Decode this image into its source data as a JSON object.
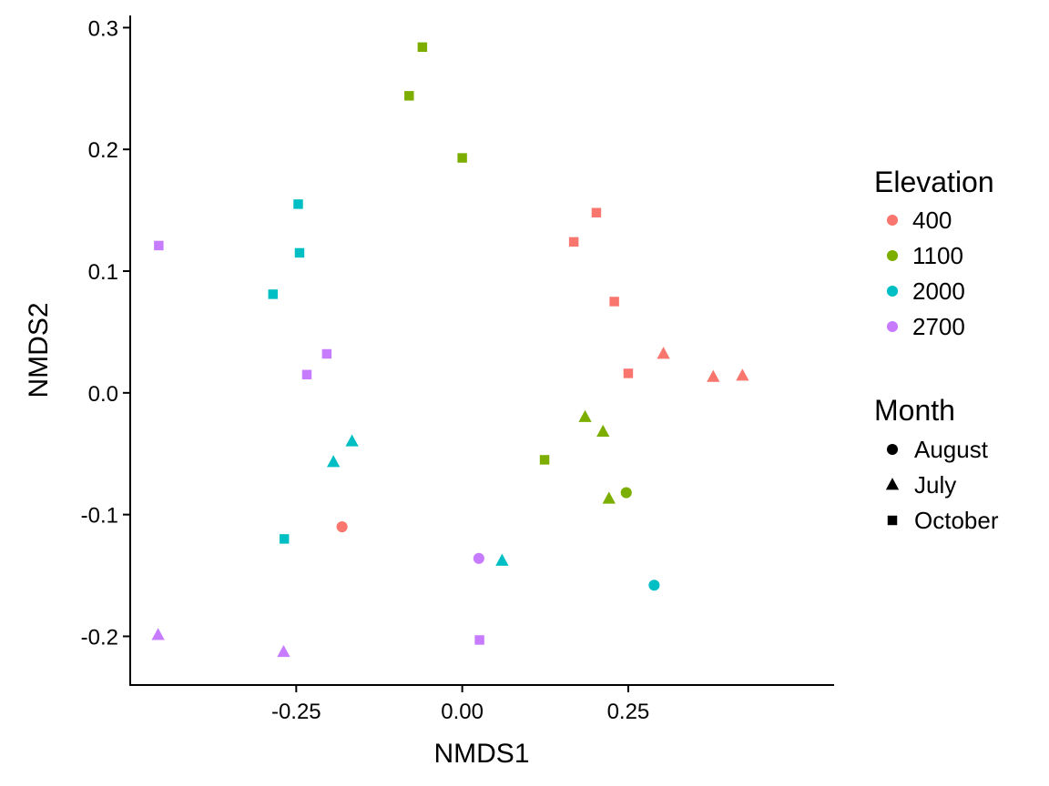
{
  "chart_data": {
    "type": "scatter",
    "xlabel": "NMDS1",
    "ylabel": "NMDS2",
    "xlim": [
      -0.5,
      0.56
    ],
    "ylim": [
      -0.24,
      0.31
    ],
    "x_ticks": [
      -0.25,
      0.0,
      0.25
    ],
    "x_tick_labels": [
      "-0.25",
      "0.00",
      "0.25"
    ],
    "y_ticks": [
      -0.2,
      -0.1,
      0.0,
      0.1,
      0.2,
      0.3
    ],
    "y_tick_labels": [
      "-0.2",
      "-0.1",
      "0.0",
      "0.1",
      "0.2",
      "0.3"
    ],
    "grid": false,
    "legend_placement": "right",
    "legends": {
      "color": {
        "title": "Elevation",
        "entries": [
          {
            "label": "400",
            "color": "#F8766D"
          },
          {
            "label": "1100",
            "color": "#7CAE00"
          },
          {
            "label": "2000",
            "color": "#00BFC4"
          },
          {
            "label": "2700",
            "color": "#C77CFF"
          }
        ]
      },
      "shape": {
        "title": "Month",
        "entries": [
          {
            "label": "August",
            "shape": "circle"
          },
          {
            "label": "July",
            "shape": "triangle"
          },
          {
            "label": "October",
            "shape": "square"
          }
        ]
      }
    },
    "points": [
      {
        "x": -0.06,
        "y": 0.284,
        "elevation": "1100",
        "month": "October"
      },
      {
        "x": -0.08,
        "y": 0.244,
        "elevation": "1100",
        "month": "October"
      },
      {
        "x": 0.0,
        "y": 0.193,
        "elevation": "1100",
        "month": "October"
      },
      {
        "x": 0.124,
        "y": -0.055,
        "elevation": "1100",
        "month": "October"
      },
      {
        "x": 0.185,
        "y": -0.02,
        "elevation": "1100",
        "month": "July"
      },
      {
        "x": 0.212,
        "y": -0.032,
        "elevation": "1100",
        "month": "July"
      },
      {
        "x": 0.221,
        "y": -0.087,
        "elevation": "1100",
        "month": "July"
      },
      {
        "x": 0.247,
        "y": -0.082,
        "elevation": "1100",
        "month": "August"
      },
      {
        "x": 0.202,
        "y": 0.148,
        "elevation": "400",
        "month": "October"
      },
      {
        "x": 0.168,
        "y": 0.124,
        "elevation": "400",
        "month": "October"
      },
      {
        "x": 0.229,
        "y": 0.075,
        "elevation": "400",
        "month": "October"
      },
      {
        "x": 0.25,
        "y": 0.016,
        "elevation": "400",
        "month": "October"
      },
      {
        "x": 0.303,
        "y": 0.032,
        "elevation": "400",
        "month": "July"
      },
      {
        "x": 0.378,
        "y": 0.013,
        "elevation": "400",
        "month": "July"
      },
      {
        "x": 0.422,
        "y": 0.014,
        "elevation": "400",
        "month": "July"
      },
      {
        "x": -0.181,
        "y": -0.11,
        "elevation": "400",
        "month": "August"
      },
      {
        "x": -0.247,
        "y": 0.155,
        "elevation": "2000",
        "month": "October"
      },
      {
        "x": -0.245,
        "y": 0.115,
        "elevation": "2000",
        "month": "October"
      },
      {
        "x": -0.285,
        "y": 0.081,
        "elevation": "2000",
        "month": "October"
      },
      {
        "x": -0.268,
        "y": -0.12,
        "elevation": "2000",
        "month": "October"
      },
      {
        "x": -0.166,
        "y": -0.04,
        "elevation": "2000",
        "month": "July"
      },
      {
        "x": -0.194,
        "y": -0.057,
        "elevation": "2000",
        "month": "July"
      },
      {
        "x": 0.06,
        "y": -0.138,
        "elevation": "2000",
        "month": "July"
      },
      {
        "x": 0.289,
        "y": -0.158,
        "elevation": "2000",
        "month": "August"
      },
      {
        "x": -0.457,
        "y": 0.121,
        "elevation": "2700",
        "month": "October"
      },
      {
        "x": -0.204,
        "y": 0.032,
        "elevation": "2700",
        "month": "October"
      },
      {
        "x": -0.234,
        "y": 0.015,
        "elevation": "2700",
        "month": "October"
      },
      {
        "x": 0.026,
        "y": -0.203,
        "elevation": "2700",
        "month": "October"
      },
      {
        "x": -0.458,
        "y": -0.199,
        "elevation": "2700",
        "month": "July"
      },
      {
        "x": -0.269,
        "y": -0.213,
        "elevation": "2700",
        "month": "July"
      },
      {
        "x": 0.025,
        "y": -0.136,
        "elevation": "2700",
        "month": "August"
      }
    ]
  }
}
